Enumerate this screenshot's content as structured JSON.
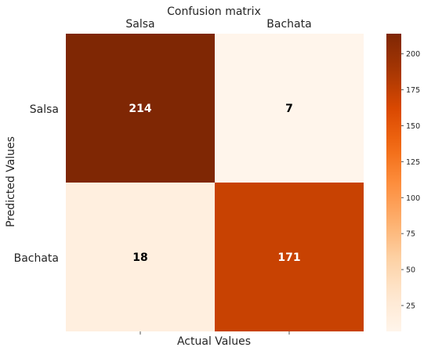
{
  "chart_data": {
    "type": "heatmap",
    "title": "Confusion matrix",
    "xlabel": "Actual Values",
    "ylabel": "Predicted Values",
    "x_categories": [
      "Salsa",
      "Bachata"
    ],
    "y_categories": [
      "Salsa",
      "Bachata"
    ],
    "x_tick_position": "top",
    "values": [
      [
        214,
        7
      ],
      [
        18,
        171
      ]
    ],
    "colormap": "Oranges",
    "colorbar": {
      "range": [
        7,
        214
      ],
      "ticks": [
        25,
        50,
        75,
        100,
        125,
        150,
        175,
        200
      ]
    }
  }
}
